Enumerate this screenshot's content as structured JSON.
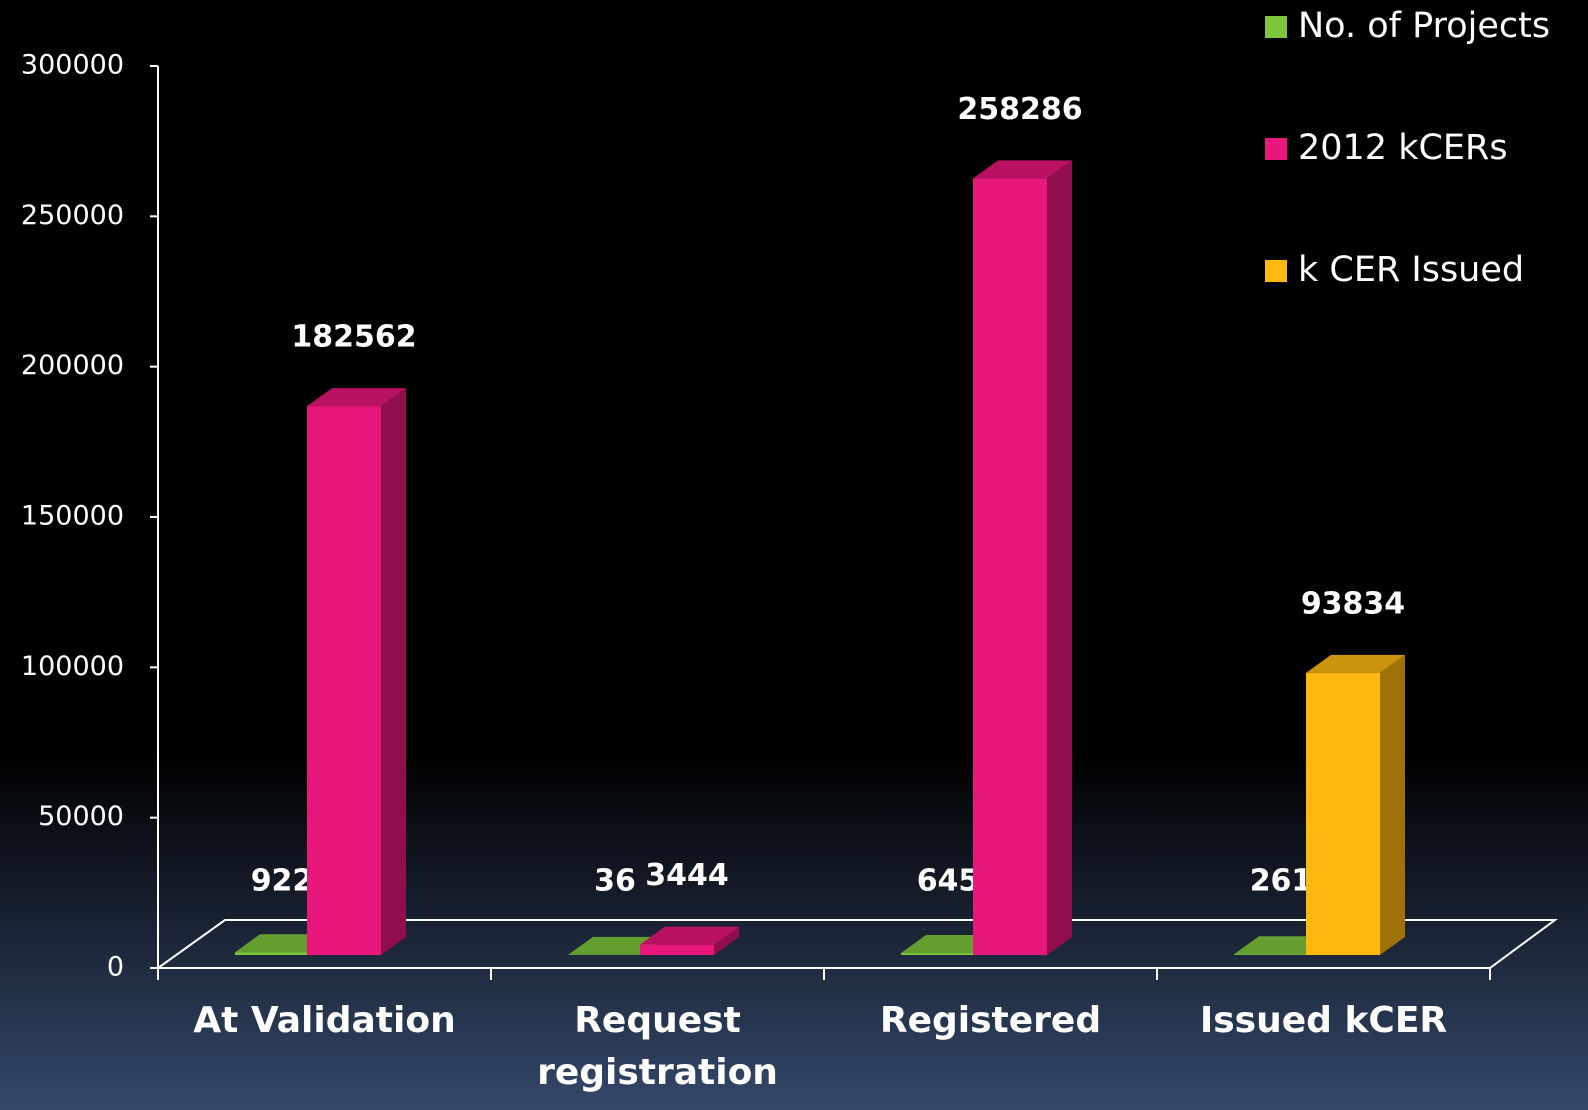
{
  "chart_data": {
    "type": "bar3d",
    "categories": [
      "At Validation",
      "Request registration",
      "Registered",
      "Issued kCER"
    ],
    "series": [
      {
        "name": "No. of Projects",
        "color": "#7dc63c",
        "values": [
          922,
          36,
          645,
          261
        ]
      },
      {
        "name": "2012 kCERs",
        "color": "#e8177b",
        "values": [
          182562,
          3444,
          258286,
          null
        ]
      },
      {
        "name": "k CER Issued",
        "color": "#ffb80f",
        "values": [
          null,
          null,
          null,
          93834
        ]
      }
    ],
    "ylim": [
      0,
      300000
    ],
    "yticks": [
      0,
      50000,
      100000,
      150000,
      200000,
      250000,
      300000
    ],
    "legend": "top-right"
  }
}
